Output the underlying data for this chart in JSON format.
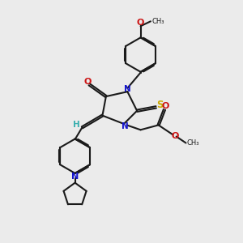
{
  "bg_color": "#ebebeb",
  "bond_color": "#1a1a1a",
  "N_color": "#1414cc",
  "O_color": "#cc1414",
  "S_color": "#ccaa00",
  "H_color": "#3aafaf",
  "xlim": [
    0,
    10
  ],
  "ylim": [
    0,
    10
  ]
}
